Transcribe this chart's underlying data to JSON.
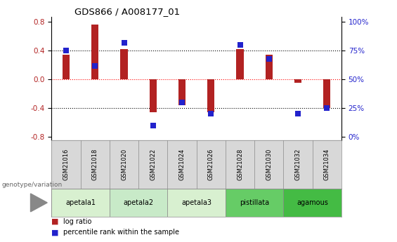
{
  "title": "GDS866 / A008177_01",
  "samples": [
    "GSM21016",
    "GSM21018",
    "GSM21020",
    "GSM21022",
    "GSM21024",
    "GSM21026",
    "GSM21028",
    "GSM21030",
    "GSM21032",
    "GSM21034"
  ],
  "log_ratio": [
    0.34,
    0.76,
    0.42,
    -0.46,
    -0.36,
    -0.46,
    0.42,
    0.34,
    -0.05,
    -0.4
  ],
  "percentile_rank_pct": [
    75,
    62,
    82,
    10,
    30,
    20,
    80,
    68,
    20,
    25
  ],
  "bar_color": "#b22222",
  "dot_color": "#2222cc",
  "ylim": [
    -0.85,
    0.87
  ],
  "yticks_left": [
    -0.8,
    -0.4,
    0.0,
    0.4,
    0.8
  ],
  "yticks_right": [
    0,
    25,
    50,
    75,
    100
  ],
  "hlines_black": [
    0.4,
    -0.4
  ],
  "hline_red": 0.0,
  "groups": [
    {
      "label": "apetala1",
      "start": 0,
      "end": 2,
      "color": "#d8f0d0"
    },
    {
      "label": "apetala2",
      "start": 2,
      "end": 4,
      "color": "#c8eac8"
    },
    {
      "label": "apetala3",
      "start": 4,
      "end": 6,
      "color": "#d8f0d0"
    },
    {
      "label": "pistillata",
      "start": 6,
      "end": 8,
      "color": "#66cc66"
    },
    {
      "label": "agamous",
      "start": 8,
      "end": 10,
      "color": "#44bb44"
    }
  ],
  "genotype_label": "genotype/variation",
  "legend_items": [
    {
      "label": "log ratio",
      "color": "#b22222"
    },
    {
      "label": "percentile rank within the sample",
      "color": "#2222cc"
    }
  ],
  "bar_width": 0.25,
  "dot_size": 30,
  "background_color": "#ffffff"
}
